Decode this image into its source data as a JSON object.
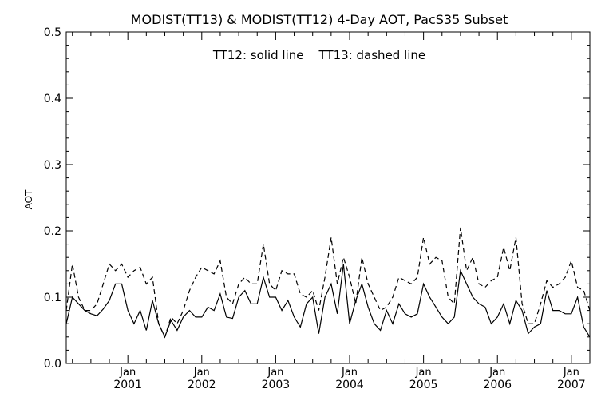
{
  "chart_data": {
    "type": "line",
    "title": "MODIST(TT13) & MODIST(TT12) 4-Day AOT, PacS35 Subset",
    "annotation": "TT12: solid line    TT13: dashed line",
    "ylabel": "AOT",
    "xlabel": "",
    "ylim": [
      0,
      0.5
    ],
    "xlim": [
      "2000-03",
      "2007-04"
    ],
    "yticks": [
      "0.0",
      "0.1",
      "0.2",
      "0.3",
      "0.4",
      "0.5"
    ],
    "xticks": [
      {
        "month": "Jan",
        "year": "2001"
      },
      {
        "month": "Jan",
        "year": "2002"
      },
      {
        "month": "Jan",
        "year": "2003"
      },
      {
        "month": "Jan",
        "year": "2004"
      },
      {
        "month": "Jan",
        "year": "2005"
      },
      {
        "month": "Jan",
        "year": "2006"
      },
      {
        "month": "Jan",
        "year": "2007"
      }
    ],
    "grid": false,
    "legend": "none",
    "series": [
      {
        "name": "TT12",
        "style": "solid",
        "x": [
          "2000-03",
          "2000-04",
          "2000-05",
          "2000-06",
          "2000-07",
          "2000-08",
          "2000-09",
          "2000-10",
          "2000-11",
          "2000-12",
          "2001-01",
          "2001-02",
          "2001-03",
          "2001-04",
          "2001-05",
          "2001-06",
          "2001-07",
          "2001-08",
          "2001-09",
          "2001-10",
          "2001-11",
          "2001-12",
          "2002-01",
          "2002-02",
          "2002-03",
          "2002-04",
          "2002-05",
          "2002-06",
          "2002-07",
          "2002-08",
          "2002-09",
          "2002-10",
          "2002-11",
          "2002-12",
          "2003-01",
          "2003-02",
          "2003-03",
          "2003-04",
          "2003-05",
          "2003-06",
          "2003-07",
          "2003-08",
          "2003-09",
          "2003-10",
          "2003-11",
          "2003-12",
          "2004-01",
          "2004-02",
          "2004-03",
          "2004-04",
          "2004-05",
          "2004-06",
          "2004-07",
          "2004-08",
          "2004-09",
          "2004-10",
          "2004-11",
          "2004-12",
          "2005-01",
          "2005-02",
          "2005-03",
          "2005-04",
          "2005-05",
          "2005-06",
          "2005-07",
          "2005-08",
          "2005-09",
          "2005-10",
          "2005-11",
          "2005-12",
          "2006-01",
          "2006-02",
          "2006-03",
          "2006-04",
          "2006-05",
          "2006-06",
          "2006-07",
          "2006-08",
          "2006-09",
          "2006-10",
          "2006-11",
          "2006-12",
          "2007-01",
          "2007-02",
          "2007-03",
          "2007-04"
        ],
        "values": [
          0.06,
          0.1,
          0.09,
          0.08,
          0.075,
          0.072,
          0.082,
          0.095,
          0.12,
          0.12,
          0.08,
          0.06,
          0.08,
          0.05,
          0.095,
          0.06,
          0.04,
          0.065,
          0.05,
          0.07,
          0.08,
          0.07,
          0.07,
          0.085,
          0.08,
          0.105,
          0.07,
          0.068,
          0.1,
          0.11,
          0.09,
          0.09,
          0.13,
          0.1,
          0.1,
          0.08,
          0.095,
          0.07,
          0.055,
          0.09,
          0.1,
          0.045,
          0.1,
          0.12,
          0.075,
          0.15,
          0.06,
          0.095,
          0.12,
          0.085,
          0.06,
          0.05,
          0.08,
          0.06,
          0.09,
          0.075,
          0.07,
          0.075,
          0.12,
          0.1,
          0.085,
          0.07,
          0.06,
          0.07,
          0.14,
          0.12,
          0.1,
          0.09,
          0.085,
          0.06,
          0.07,
          0.09,
          0.06,
          0.095,
          0.08,
          0.045,
          0.055,
          0.06,
          0.11,
          0.08,
          0.08,
          0.075,
          0.075,
          0.1,
          0.055,
          0.04
        ]
      },
      {
        "name": "TT13",
        "style": "dashed",
        "x": [
          "2000-03",
          "2000-04",
          "2000-05",
          "2000-06",
          "2000-07",
          "2000-08",
          "2000-09",
          "2000-10",
          "2000-11",
          "2000-12",
          "2001-01",
          "2001-02",
          "2001-03",
          "2001-04",
          "2001-05",
          "2001-06",
          "2001-07",
          "2001-08",
          "2001-09",
          "2001-10",
          "2001-11",
          "2001-12",
          "2002-01",
          "2002-02",
          "2002-03",
          "2002-04",
          "2002-05",
          "2002-06",
          "2002-07",
          "2002-08",
          "2002-09",
          "2002-10",
          "2002-11",
          "2002-12",
          "2003-01",
          "2003-02",
          "2003-03",
          "2003-04",
          "2003-05",
          "2003-06",
          "2003-07",
          "2003-08",
          "2003-09",
          "2003-10",
          "2003-11",
          "2003-12",
          "2004-01",
          "2004-02",
          "2004-03",
          "2004-04",
          "2004-05",
          "2004-06",
          "2004-07",
          "2004-08",
          "2004-09",
          "2004-10",
          "2004-11",
          "2004-12",
          "2005-01",
          "2005-02",
          "2005-03",
          "2005-04",
          "2005-05",
          "2005-06",
          "2005-07",
          "2005-08",
          "2005-09",
          "2005-10",
          "2005-11",
          "2005-12",
          "2006-01",
          "2006-02",
          "2006-03",
          "2006-04",
          "2006-05",
          "2006-06",
          "2006-07",
          "2006-08",
          "2006-09",
          "2006-10",
          "2006-11",
          "2006-12",
          "2007-01",
          "2007-02",
          "2007-03",
          "2007-04"
        ],
        "values": [
          0.08,
          0.15,
          0.1,
          0.08,
          0.08,
          0.09,
          0.12,
          0.15,
          0.14,
          0.15,
          0.13,
          0.14,
          0.145,
          0.12,
          0.13,
          0.06,
          0.04,
          0.07,
          0.06,
          0.08,
          0.11,
          0.13,
          0.145,
          0.14,
          0.135,
          0.155,
          0.1,
          0.09,
          0.12,
          0.13,
          0.12,
          0.12,
          0.18,
          0.12,
          0.11,
          0.14,
          0.135,
          0.135,
          0.105,
          0.1,
          0.11,
          0.08,
          0.13,
          0.19,
          0.12,
          0.16,
          0.13,
          0.09,
          0.16,
          0.12,
          0.1,
          0.08,
          0.085,
          0.1,
          0.13,
          0.125,
          0.12,
          0.13,
          0.19,
          0.15,
          0.16,
          0.155,
          0.1,
          0.09,
          0.205,
          0.14,
          0.16,
          0.12,
          0.115,
          0.125,
          0.13,
          0.175,
          0.14,
          0.19,
          0.09,
          0.06,
          0.06,
          0.09,
          0.125,
          0.115,
          0.12,
          0.13,
          0.155,
          0.115,
          0.11,
          0.08
        ]
      }
    ]
  }
}
